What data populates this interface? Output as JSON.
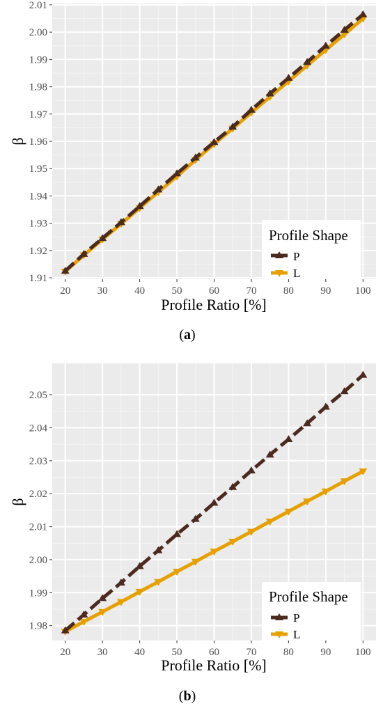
{
  "chart_data": [
    {
      "type": "line",
      "caption": "a",
      "xlabel": "Profile Ratio [%]",
      "ylabel": "β",
      "xlim": [
        16.5,
        103.5
      ],
      "ylim": [
        1.9095,
        2.0105
      ],
      "xticks": [
        20,
        30,
        40,
        50,
        60,
        70,
        80,
        90,
        100
      ],
      "yticks": [
        1.91,
        1.92,
        1.93,
        1.94,
        1.95,
        1.96,
        1.97,
        1.98,
        1.99,
        2.0,
        2.01
      ],
      "ytick_labels": [
        "1.91",
        "1.92",
        "1.93",
        "1.94",
        "1.95",
        "1.96",
        "1.97",
        "1.98",
        "1.99",
        "2.00",
        "2.01"
      ],
      "grid": true,
      "legend": {
        "title": "Profile Shape",
        "position": "bottom-right"
      },
      "x": [
        20,
        25,
        30,
        35,
        40,
        45,
        50,
        55,
        60,
        65,
        70,
        75,
        80,
        85,
        90,
        95,
        100
      ],
      "series": [
        {
          "name": "P",
          "color": "#4b2a1f",
          "line": "dashed",
          "marker": "triangle-up",
          "values": [
            1.9125,
            1.9187,
            1.9245,
            1.9303,
            1.9362,
            1.9423,
            1.9482,
            1.954,
            1.9597,
            1.9653,
            1.9715,
            1.9775,
            1.9832,
            1.989,
            1.995,
            2.0008,
            2.0065
          ]
        },
        {
          "name": "L",
          "color": "#e6a100",
          "line": "solid",
          "marker": "triangle-down",
          "values": [
            1.9123,
            1.9183,
            1.9241,
            1.9298,
            1.9356,
            1.9414,
            1.9472,
            1.9532,
            1.959,
            1.9647,
            1.9705,
            1.9763,
            1.982,
            1.9878,
            1.9935,
            1.9992,
            2.005
          ]
        }
      ]
    },
    {
      "type": "line",
      "caption": "b",
      "xlabel": "Profile Ratio [%]",
      "ylabel": "β",
      "xlim": [
        16.5,
        103.5
      ],
      "ylim": [
        1.9755,
        2.0595
      ],
      "xticks": [
        20,
        30,
        40,
        50,
        60,
        70,
        80,
        90,
        100
      ],
      "yticks": [
        1.98,
        1.99,
        2.0,
        2.01,
        2.02,
        2.03,
        2.04,
        2.05
      ],
      "ytick_labels": [
        "1.98",
        "1.99",
        "2.00",
        "2.01",
        "2.02",
        "2.03",
        "2.04",
        "2.05"
      ],
      "grid": true,
      "legend": {
        "title": "Profile Shape",
        "position": "bottom-right"
      },
      "x": [
        20,
        25,
        30,
        35,
        40,
        45,
        50,
        55,
        60,
        65,
        70,
        75,
        80,
        85,
        90,
        95,
        100
      ],
      "series": [
        {
          "name": "P",
          "color": "#4b2a1f",
          "line": "dashed",
          "marker": "triangle-up",
          "values": [
            1.9785,
            1.9833,
            1.9883,
            1.993,
            1.998,
            2.0028,
            2.0077,
            2.0123,
            2.0172,
            2.022,
            2.027,
            2.0318,
            2.0365,
            2.0413,
            2.0463,
            2.051,
            2.056
          ]
        },
        {
          "name": "L",
          "color": "#e6a100",
          "line": "solid",
          "marker": "triangle-down",
          "values": [
            1.9782,
            1.9812,
            1.9842,
            1.9872,
            1.9903,
            1.9933,
            1.9964,
            1.9994,
            2.0025,
            2.0055,
            2.0085,
            2.0116,
            2.0146,
            2.0177,
            2.0207,
            2.0238,
            2.0268
          ]
        }
      ]
    }
  ]
}
